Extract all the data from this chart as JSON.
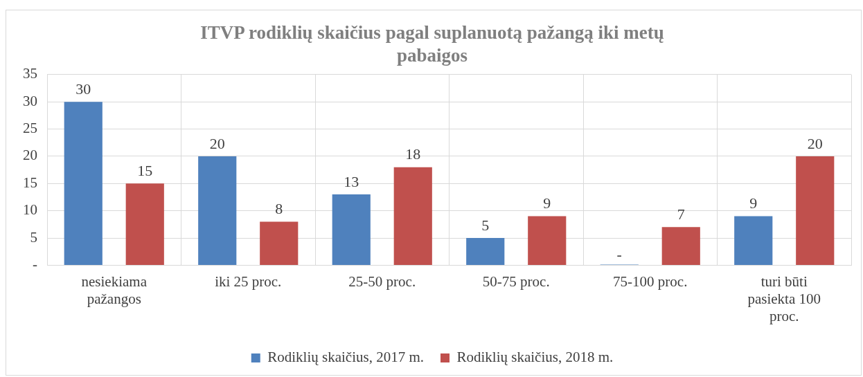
{
  "chart_data": {
    "type": "bar",
    "title": "ITVP rodiklių skaičius pagal suplanuotą pažangą iki metų pabaigos",
    "categories": [
      "nesiekiama pažangos",
      "iki 25 proc.",
      "25-50 proc.",
      "50-75 proc.",
      "75-100 proc.",
      "turi būti pasiekta 100 proc."
    ],
    "series": [
      {
        "name": "Rodiklių skaičius, 2017 m.",
        "color": "#4f81bd",
        "values": [
          30,
          20,
          13,
          5,
          0,
          9
        ],
        "value_labels": [
          "30",
          "20",
          "13",
          "5",
          "-",
          "9"
        ]
      },
      {
        "name": "Rodiklių skaičius, 2018 m.",
        "color": "#c0504d",
        "values": [
          15,
          8,
          18,
          9,
          7,
          20
        ],
        "value_labels": [
          "15",
          "8",
          "18",
          "9",
          "7",
          "20"
        ]
      }
    ],
    "ylim": [
      0,
      35
    ],
    "yticks": [
      {
        "value": 0,
        "label": "-"
      },
      5,
      10,
      15,
      20,
      25,
      30,
      35
    ],
    "grid": true,
    "legend": "bottom"
  }
}
